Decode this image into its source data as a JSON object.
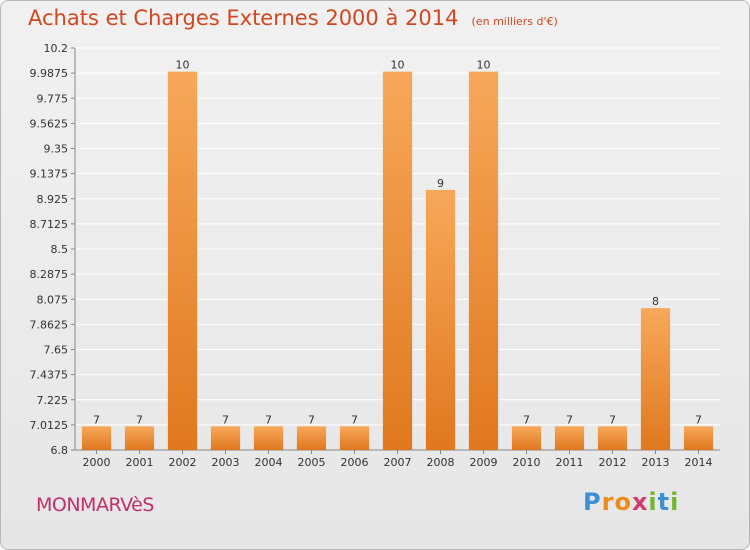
{
  "header": {
    "title": "Achats et Charges Externes 2000 à 2014",
    "subtitle": "(en milliers d'€)"
  },
  "footer": {
    "commune": "MONMARVèS",
    "logo_text": "Proxiti"
  },
  "colors": {
    "bar_top": "#f7a85a",
    "bar_bottom": "#e0781e",
    "title": "#d2471f",
    "commune": "#c0306a",
    "grid": "#ffffff"
  },
  "chart_data": {
    "type": "bar",
    "categories": [
      "2000",
      "2001",
      "2002",
      "2003",
      "2004",
      "2005",
      "2006",
      "2007",
      "2008",
      "2009",
      "2010",
      "2011",
      "2012",
      "2013",
      "2014"
    ],
    "values": [
      7,
      7,
      10,
      7,
      7,
      7,
      7,
      10,
      9,
      10,
      7,
      7,
      7,
      8,
      7
    ],
    "data_labels": [
      "7",
      "7",
      "10",
      "7",
      "7",
      "7",
      "7",
      "10",
      "9",
      "10",
      "7",
      "7",
      "7",
      "8",
      "7"
    ],
    "y_ticks": [
      "6.8",
      "7.0125",
      "7.225",
      "7.4375",
      "7.65",
      "7.8625",
      "8.075",
      "8.2875",
      "8.5",
      "8.7125",
      "8.925",
      "9.1375",
      "9.35",
      "9.5625",
      "9.775",
      "9.9875",
      "10.2"
    ],
    "ylim": [
      6.8,
      10.2
    ],
    "grid": true,
    "legend": "none",
    "title": "Achats et Charges Externes 2000 à 2014",
    "xlabel": "",
    "ylabel": ""
  }
}
